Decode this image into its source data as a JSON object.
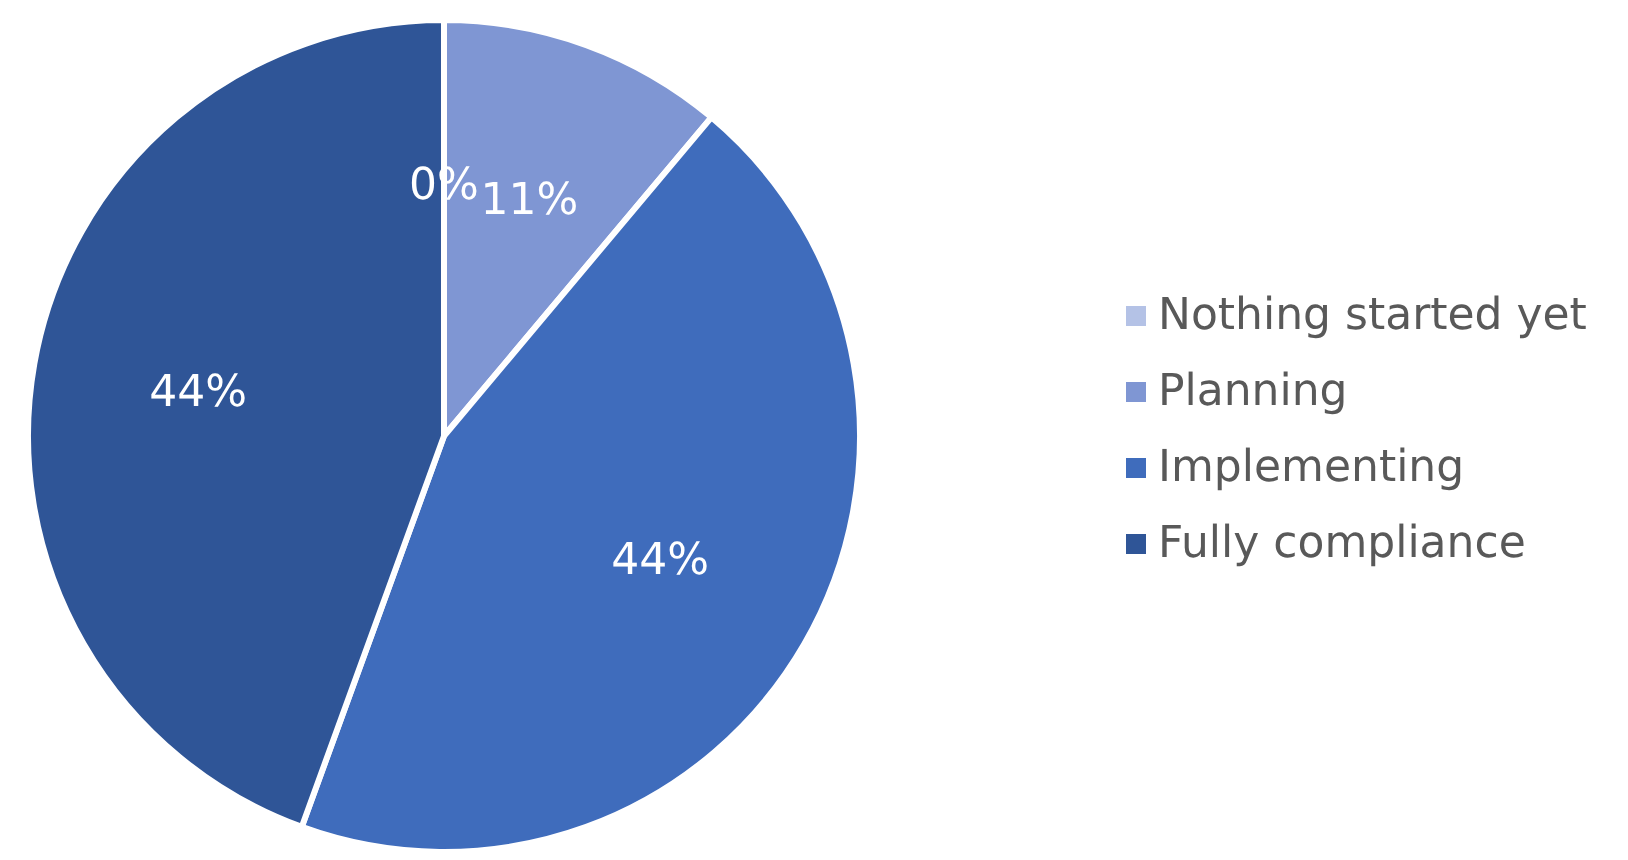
{
  "chart_data": {
    "type": "pie",
    "categories": [
      "Nothing started yet",
      "Planning",
      "Implementing",
      "Fully compliance"
    ],
    "values": [
      0,
      11,
      44,
      44
    ],
    "colors": [
      "#b4c2e6",
      "#7f96d3",
      "#3f6cbc",
      "#2f5597"
    ],
    "value_labels": [
      "0%",
      "11%",
      "44%",
      "44%"
    ],
    "legend": "right"
  }
}
